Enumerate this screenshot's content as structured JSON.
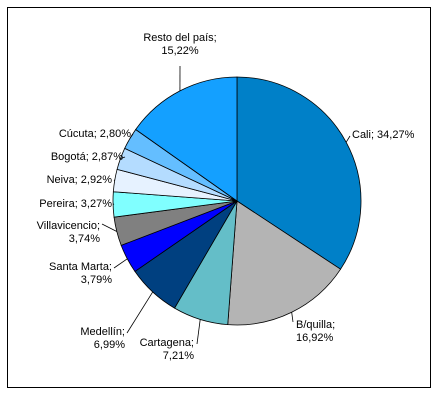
{
  "chart_data": {
    "type": "pie",
    "title": "",
    "start_angle_deg": 0,
    "direction": "clockwise",
    "slices": [
      {
        "label": "Cali",
        "value": 34.27,
        "label_text": [
          "Cali; 34,27%"
        ],
        "color": "#0080C8"
      },
      {
        "label": "B/quilla",
        "value": 16.92,
        "label_text": [
          "B/quilla;",
          "16,92%"
        ],
        "color": "#B4B4B4"
      },
      {
        "label": "Cartagena",
        "value": 7.21,
        "label_text": [
          "Cartagena;",
          "7,21%"
        ],
        "color": "#64BEC8"
      },
      {
        "label": "Medellín",
        "value": 6.99,
        "label_text": [
          "Medellín;",
          "6,99%"
        ],
        "color": "#004080"
      },
      {
        "label": "Santa Marta",
        "value": 3.79,
        "label_text": [
          "Santa Marta;",
          "3,79%"
        ],
        "color": "#0000FF"
      },
      {
        "label": "Villavicencio",
        "value": 3.74,
        "label_text": [
          "Villavicencio;",
          "3,74%"
        ],
        "color": "#808080"
      },
      {
        "label": "Pereira",
        "value": 3.27,
        "label_text": [
          "Pereira; 3,27%"
        ],
        "color": "#80FFFF"
      },
      {
        "label": "Neiva",
        "value": 2.92,
        "label_text": [
          "Neiva; 2,92%"
        ],
        "color": "#E6F2FF"
      },
      {
        "label": "Bogotá",
        "value": 2.87,
        "label_text": [
          "Bogotá; 2,87%"
        ],
        "color": "#B4DCFF"
      },
      {
        "label": "Cúcuta",
        "value": 2.8,
        "label_text": [
          "Cúcuta; 2,80%"
        ],
        "color": "#64BEFF"
      },
      {
        "label": "Resto del país",
        "value": 15.22,
        "label_text": [
          "Resto del país;",
          "15,22%"
        ],
        "color": "#14A0FF"
      }
    ]
  }
}
